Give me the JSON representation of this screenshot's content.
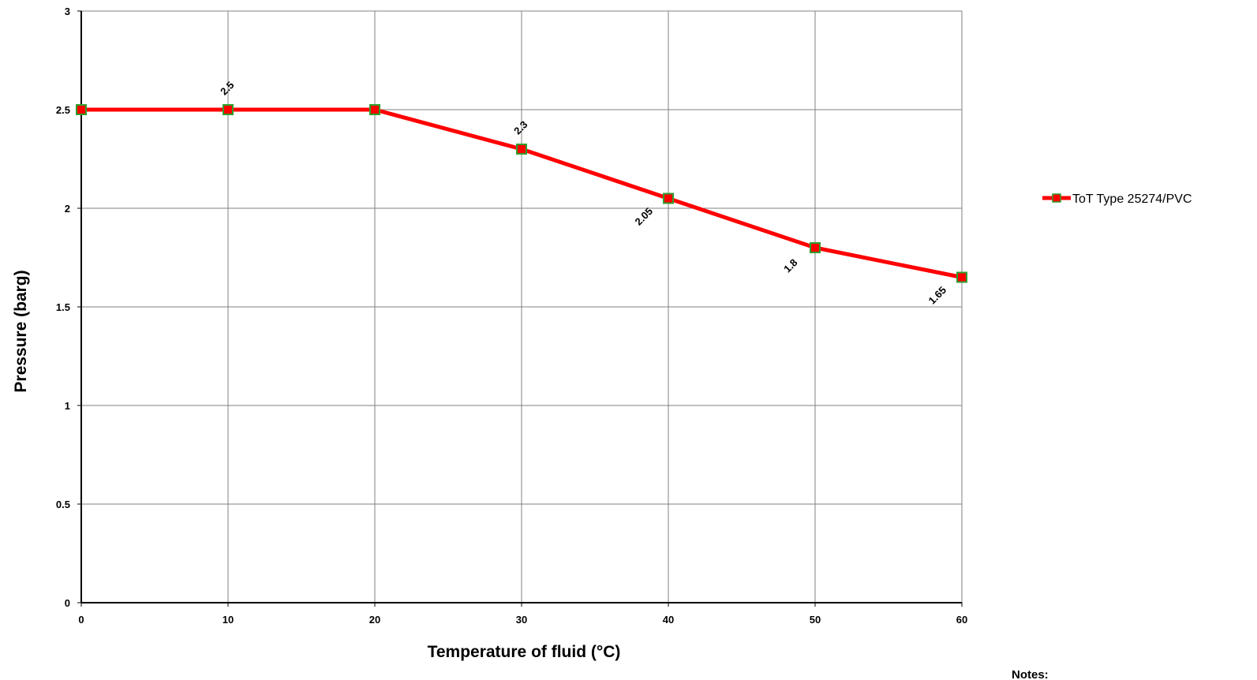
{
  "chart_data": {
    "type": "line",
    "xlabel": "Temperature of fluid (°C)",
    "ylabel": "Pressure (barg)",
    "xlim": [
      0,
      60
    ],
    "ylim": [
      0,
      3
    ],
    "x_ticks": [
      0,
      10,
      20,
      30,
      40,
      50,
      60
    ],
    "y_ticks": [
      0,
      0.5,
      1,
      1.5,
      2,
      2.5,
      3
    ],
    "x_tick_labels": [
      "0",
      "10",
      "20",
      "30",
      "40",
      "50",
      "60"
    ],
    "y_tick_labels": [
      "0",
      "0.5",
      "1",
      "1.5",
      "2",
      "2.5",
      "3"
    ],
    "grid": true,
    "legend_position": "right",
    "series": [
      {
        "name": "ToT Type 25274/PVC",
        "color": "#ff0000",
        "marker": "square",
        "marker_border": "#2e9e2e",
        "x": [
          0,
          10,
          20,
          30,
          40,
          50,
          60
        ],
        "y": [
          2.5,
          2.5,
          2.5,
          2.3,
          2.05,
          1.8,
          1.65
        ],
        "data_labels": [
          {
            "x": 10,
            "text": "2.5",
            "placement": "above"
          },
          {
            "x": 30,
            "text": "2.3",
            "placement": "above"
          },
          {
            "x": 40,
            "text": "2.05",
            "placement": "below"
          },
          {
            "x": 50,
            "text": "1.8",
            "placement": "below"
          },
          {
            "x": 60,
            "text": "1.65",
            "placement": "below"
          }
        ]
      }
    ]
  },
  "notes_label": "Notes:"
}
